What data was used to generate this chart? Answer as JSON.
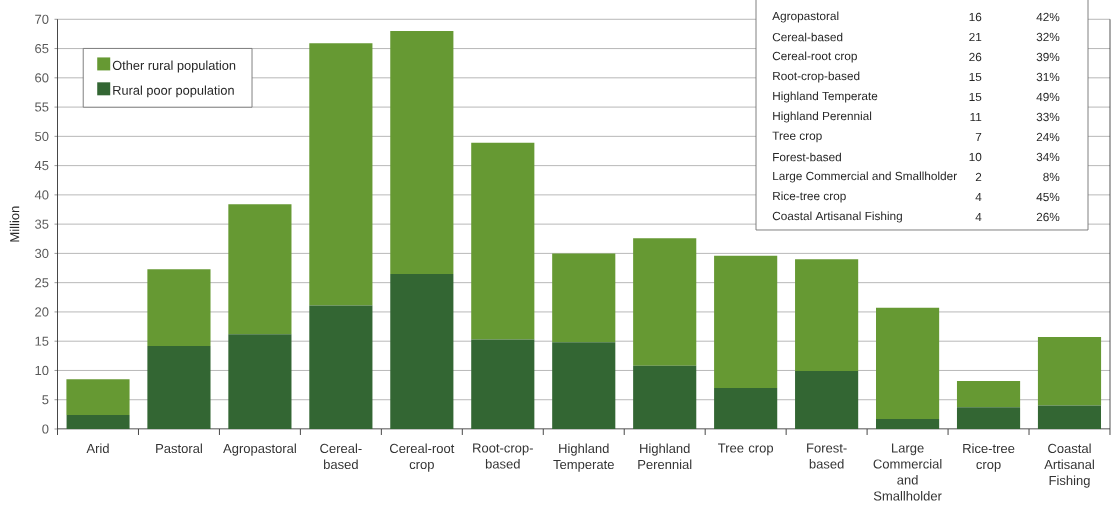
{
  "chart_data": {
    "type": "bar",
    "ylabel": "Million",
    "categories": [
      "Arid",
      "Pastoral",
      "Agropastoral",
      "Cereal-based",
      "Cereal-root crop",
      "Root-crop-based",
      "Highland Temperate",
      "Highland Perennial",
      "Tree crop",
      "Forest-based",
      "Large Commercial and Smallholder",
      "Rice-tree crop",
      "Coastal Artisanal Fishing"
    ],
    "series": [
      {
        "name": "Rural poor population",
        "color": "#336633",
        "values": [
          2.4,
          14.2,
          16.2,
          21.1,
          26.5,
          15.3,
          14.8,
          10.8,
          7.0,
          9.9,
          1.7,
          3.7,
          4.0
        ]
      },
      {
        "name": "Other rural population",
        "color": "#669933",
        "values": [
          6.1,
          13.1,
          22.2,
          44.8,
          41.5,
          33.6,
          15.2,
          21.8,
          22.6,
          19.1,
          19.0,
          4.5,
          11.7
        ]
      }
    ],
    "stacked": true,
    "ylim": [
      0,
      70
    ],
    "yticks": [
      0,
      5,
      10,
      15,
      20,
      25,
      30,
      35,
      40,
      45,
      50,
      55,
      60,
      65,
      70
    ],
    "grid": "y",
    "legend": "top left",
    "annotations": [
      "Agropastoral",
      "16",
      "42%",
      "Cereal-based",
      "21",
      "32%",
      "Cereal-root crop",
      "26",
      "39%",
      "Root-crop-based",
      "15",
      "31%",
      "Highland Temperate",
      "15",
      "49%",
      "Highland Perennial",
      "11",
      "33%",
      "Tree crop",
      "7",
      "24%",
      "Forest-based",
      "10",
      "34%",
      "Large Commercial and Smallholder",
      "2",
      "8%",
      "Rice-tree crop",
      "4",
      "45%",
      "Coastal Artisanal Fishing",
      "4",
      "26%"
    ]
  }
}
